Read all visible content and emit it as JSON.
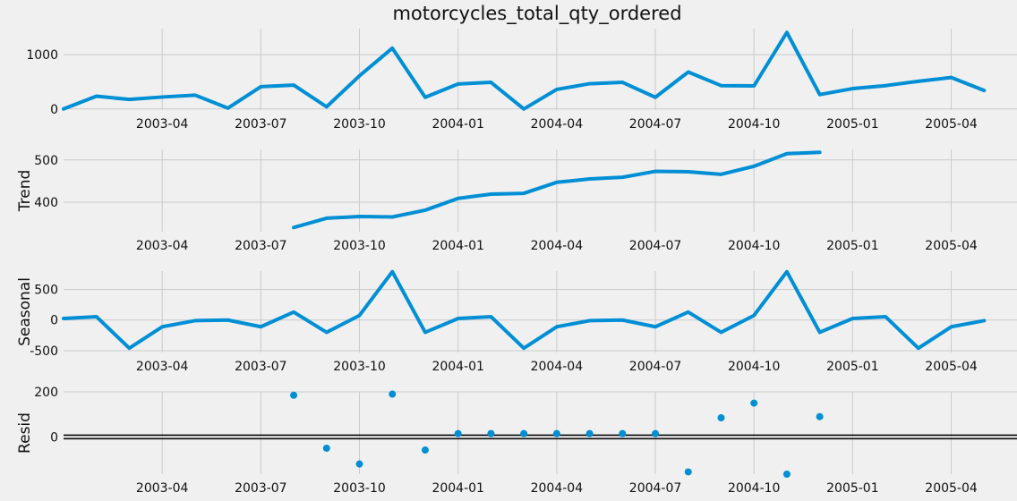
{
  "chart_data": {
    "type": "line",
    "title": "motorcycles_total_qty_ordered",
    "x_ticks": [
      "2003-04",
      "2003-07",
      "2003-10",
      "2004-01",
      "2004-04",
      "2004-07",
      "2004-10",
      "2005-01",
      "2005-04"
    ],
    "x": [
      "2003-01",
      "2003-02",
      "2003-03",
      "2003-04",
      "2003-05",
      "2003-06",
      "2003-07",
      "2003-08",
      "2003-09",
      "2003-10",
      "2003-11",
      "2003-12",
      "2004-01",
      "2004-02",
      "2004-03",
      "2004-04",
      "2004-05",
      "2004-06",
      "2004-07",
      "2004-08",
      "2004-09",
      "2004-10",
      "2004-11",
      "2004-12",
      "2005-01",
      "2005-02",
      "2005-03",
      "2005-04",
      "2005-05"
    ],
    "grid": true,
    "panels": [
      {
        "ylabel": "",
        "type": "line",
        "y_ticks": [
          0,
          1000
        ],
        "ylim": [
          -20,
          1480
        ],
        "values": [
          0,
          235,
          175,
          220,
          255,
          15,
          410,
          440,
          40,
          610,
          1120,
          215,
          460,
          490,
          0,
          360,
          465,
          490,
          215,
          680,
          430,
          425,
          1410,
          265,
          375,
          430,
          510,
          580,
          340
        ]
      },
      {
        "ylabel": "Trend",
        "type": "line",
        "y_ticks": [
          400,
          500
        ],
        "ylim": [
          330,
          525
        ],
        "values": [
          null,
          null,
          null,
          null,
          null,
          null,
          null,
          340,
          362,
          366,
          365,
          381,
          409,
          419,
          421,
          447,
          455,
          459,
          473,
          472,
          466,
          485,
          515,
          518,
          null,
          null,
          null,
          null,
          null
        ]
      },
      {
        "ylabel": "Seasonal",
        "type": "line",
        "y_ticks": [
          -500,
          0,
          500
        ],
        "ylim": [
          -530,
          800
        ],
        "values": [
          25,
          55,
          -460,
          -110,
          -10,
          0,
          -110,
          130,
          -200,
          75,
          790,
          -200,
          25,
          55,
          -460,
          -110,
          -10,
          0,
          -110,
          130,
          -200,
          75,
          790,
          -200,
          25,
          55,
          -460,
          -110,
          -10
        ]
      },
      {
        "ylabel": "Resid",
        "type": "scatter",
        "y_ticks": [
          0,
          200
        ],
        "ylim": [
          -165,
          200
        ],
        "values": [
          null,
          null,
          null,
          null,
          null,
          null,
          null,
          185,
          -50,
          -120,
          190,
          -58,
          15,
          15,
          15,
          15,
          15,
          15,
          15,
          -155,
          85,
          150,
          -165,
          90,
          null,
          null,
          null,
          null,
          null
        ]
      }
    ]
  }
}
